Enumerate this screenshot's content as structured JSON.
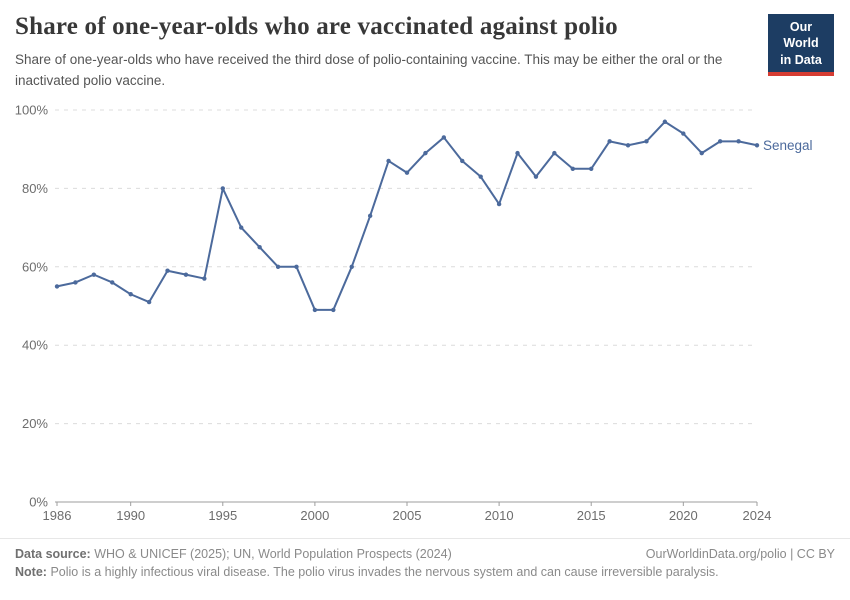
{
  "header": {
    "title": "Share of one-year-olds who are vaccinated against polio",
    "subtitle": "Share of one-year-olds who have received the third dose of polio-containing vaccine. This may be either the oral or the inactivated polio vaccine."
  },
  "logo": {
    "line1": "Our World",
    "line2": "in Data",
    "bg_color": "#1d3d63",
    "accent_color": "#d63c32"
  },
  "chart_data": {
    "type": "line",
    "title": "Share of one-year-olds who are vaccinated against polio",
    "xlabel": "",
    "ylabel": "",
    "xlim": [
      1986,
      2024
    ],
    "ylim": [
      0,
      100
    ],
    "grid": "horizontal-dashed",
    "legend_position": "end-of-line",
    "xticks": [
      1986,
      1990,
      1995,
      2000,
      2005,
      2010,
      2015,
      2020,
      2024
    ],
    "yticks": [
      0,
      20,
      40,
      60,
      80,
      100
    ],
    "ytick_suffix": "%",
    "x": [
      1986,
      1987,
      1988,
      1989,
      1990,
      1991,
      1992,
      1993,
      1994,
      1995,
      1996,
      1997,
      1998,
      1999,
      2000,
      2001,
      2002,
      2003,
      2004,
      2005,
      2006,
      2007,
      2008,
      2009,
      2010,
      2011,
      2012,
      2013,
      2014,
      2015,
      2016,
      2017,
      2018,
      2019,
      2020,
      2021,
      2022,
      2023,
      2024
    ],
    "series": [
      {
        "name": "Senegal",
        "color": "#4c6a9c",
        "values": [
          55,
          56,
          58,
          56,
          53,
          51,
          59,
          58,
          57,
          80,
          70,
          65,
          60,
          60,
          49,
          49,
          60,
          73,
          87,
          84,
          89,
          93,
          87,
          83,
          76,
          89,
          83,
          89,
          85,
          85,
          92,
          91,
          92,
          97,
          94,
          89,
          92,
          92,
          91
        ]
      }
    ],
    "colors": {
      "grid": "#dcdcdc",
      "axis": "#9e9e9e",
      "tick_text": "#6d6d6d"
    }
  },
  "footer": {
    "datasource_label": "Data source:",
    "datasource_text": "WHO & UNICEF (2025); UN, World Population Prospects (2024)",
    "rights_text": "OurWorldinData.org/polio | CC BY",
    "note_label": "Note:",
    "note_text": "Polio is a highly infectious viral disease. The polio virus invades the nervous system and can cause irreversible paralysis."
  }
}
